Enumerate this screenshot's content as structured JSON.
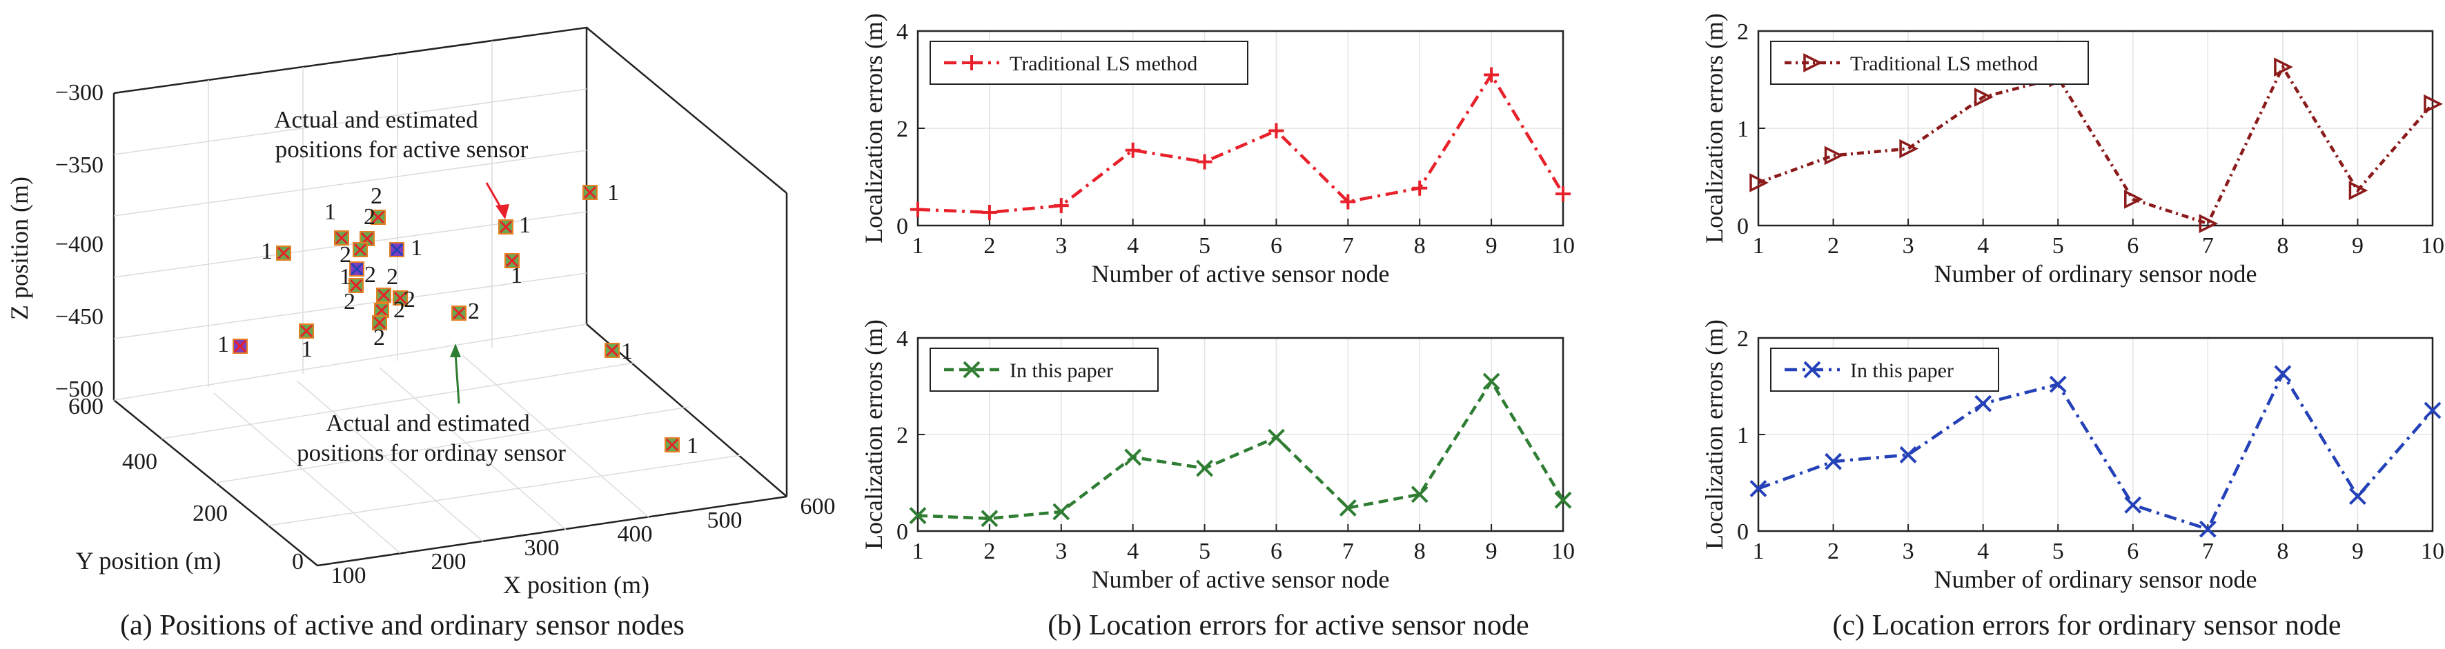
{
  "colors": {
    "red": "#e8202a",
    "darkred": "#8b1a1a",
    "green": "#2e7d32",
    "blue": "#2441b8",
    "purple": "#7b3fc0",
    "marker_fill": "#6aa84f",
    "marker_orange": "#e67e22"
  },
  "panel_a": {
    "caption": "(a) Positions of active and ordinary sensor nodes",
    "xlabel": "X position (m)",
    "ylabel": "Y position (m)",
    "zlabel": "Z position (m)",
    "x_ticks": [
      "100",
      "200",
      "300",
      "400",
      "500",
      "600"
    ],
    "y_ticks": [
      "0",
      "200",
      "400",
      "600"
    ],
    "z_ticks": [
      "−300",
      "−350",
      "−400",
      "−450",
      "−500"
    ],
    "annotation_active": [
      "Actual and estimated",
      "positions for active sensor"
    ],
    "annotation_ordinary": [
      "Actual and estimated",
      "positions for ordinay sensor"
    ]
  },
  "chart_data": [
    {
      "type": "line",
      "panel": "b-top",
      "xlabel": "Number of active sensor node",
      "ylabel": "Localization errors (m)",
      "xlim": [
        1,
        10
      ],
      "ylim": [
        0,
        4
      ],
      "x_ticks": [
        "1",
        "2",
        "3",
        "4",
        "5",
        "6",
        "7",
        "8",
        "9",
        "10"
      ],
      "y_ticks": [
        "0",
        "2",
        "4"
      ],
      "grid": true,
      "legend_position": "top-left",
      "x": [
        1,
        2,
        3,
        4,
        5,
        6,
        7,
        8,
        9,
        10
      ],
      "series": [
        {
          "name": "Traditional LS method",
          "marker": "+",
          "values": [
            0.33,
            0.27,
            0.41,
            1.55,
            1.31,
            1.95,
            0.49,
            0.77,
            3.1,
            0.65
          ]
        }
      ]
    },
    {
      "type": "line",
      "panel": "b-bottom",
      "caption": "(b) Location errors for active sensor node",
      "xlabel": "Number of active sensor node",
      "ylabel": "Localization errors (m)",
      "xlim": [
        1,
        10
      ],
      "ylim": [
        0,
        4
      ],
      "x_ticks": [
        "1",
        "2",
        "3",
        "4",
        "5",
        "6",
        "7",
        "8",
        "9",
        "10"
      ],
      "y_ticks": [
        "0",
        "2",
        "4"
      ],
      "grid": true,
      "legend_position": "top-left",
      "x": [
        1,
        2,
        3,
        4,
        5,
        6,
        7,
        8,
        9,
        10
      ],
      "series": [
        {
          "name": "In this paper",
          "marker": "x",
          "values": [
            0.32,
            0.26,
            0.4,
            1.53,
            1.3,
            1.94,
            0.48,
            0.76,
            3.1,
            0.64
          ]
        }
      ]
    },
    {
      "type": "line",
      "panel": "c-top",
      "xlabel": "Number of ordinary sensor node",
      "ylabel": "Localization errors (m)",
      "xlim": [
        1,
        10
      ],
      "ylim": [
        0,
        2
      ],
      "x_ticks": [
        "1",
        "2",
        "3",
        "4",
        "5",
        "6",
        "7",
        "8",
        "9",
        "10"
      ],
      "y_ticks": [
        "0",
        "1",
        "2"
      ],
      "grid": true,
      "legend_position": "top-left",
      "x": [
        1,
        2,
        3,
        4,
        5,
        6,
        7,
        8,
        9,
        10
      ],
      "series": [
        {
          "name": "Traditional LS method",
          "marker": ">",
          "values": [
            0.44,
            0.72,
            0.79,
            1.32,
            1.52,
            0.27,
            0.02,
            1.63,
            0.36,
            1.25
          ]
        }
      ]
    },
    {
      "type": "line",
      "panel": "c-bottom",
      "caption": "(c) Location errors for ordinary sensor node",
      "xlabel": "Number of ordinary sensor node",
      "ylabel": "Localization errors (m)",
      "xlim": [
        1,
        10
      ],
      "ylim": [
        0,
        2
      ],
      "x_ticks": [
        "1",
        "2",
        "3",
        "4",
        "5",
        "6",
        "7",
        "8",
        "9",
        "10"
      ],
      "y_ticks": [
        "0",
        "1",
        "2"
      ],
      "grid": true,
      "legend_position": "top-left",
      "x": [
        1,
        2,
        3,
        4,
        5,
        6,
        7,
        8,
        9,
        10
      ],
      "series": [
        {
          "name": "In this paper",
          "marker": "x",
          "values": [
            0.44,
            0.72,
            0.79,
            1.32,
            1.52,
            0.27,
            0.02,
            1.63,
            0.36,
            1.25
          ]
        }
      ]
    }
  ]
}
